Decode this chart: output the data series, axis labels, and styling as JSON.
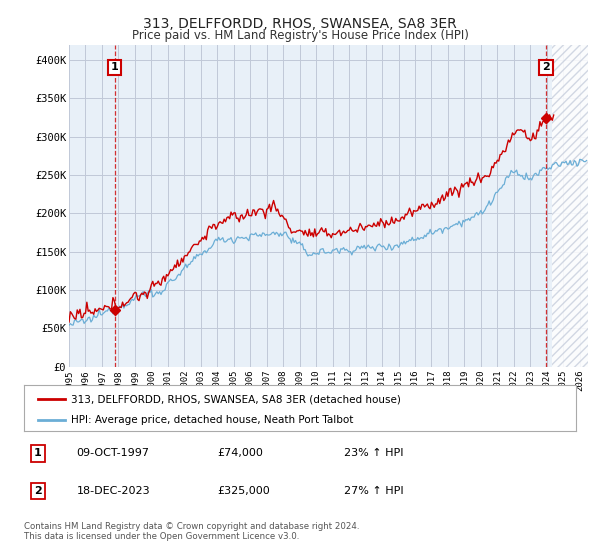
{
  "title": "313, DELFFORDD, RHOS, SWANSEA, SA8 3ER",
  "subtitle": "Price paid vs. HM Land Registry's House Price Index (HPI)",
  "legend_line1": "313, DELFFORDD, RHOS, SWANSEA, SA8 3ER (detached house)",
  "legend_line2": "HPI: Average price, detached house, Neath Port Talbot",
  "annotation1_date": "09-OCT-1997",
  "annotation1_price": "£74,000",
  "annotation1_hpi": "23% ↑ HPI",
  "annotation1_year": 1997.78,
  "annotation1_value": 74000,
  "annotation2_date": "18-DEC-2023",
  "annotation2_price": "£325,000",
  "annotation2_hpi": "27% ↑ HPI",
  "annotation2_year": 2023.96,
  "annotation2_value": 325000,
  "footer": "Contains HM Land Registry data © Crown copyright and database right 2024.\nThis data is licensed under the Open Government Licence v3.0.",
  "hpi_color": "#6baed6",
  "price_color": "#cc0000",
  "background_color": "#ffffff",
  "chart_bg_color": "#e8f0f8",
  "grid_color": "#c0c8d8",
  "ylim": [
    0,
    420000
  ],
  "yticks": [
    0,
    50000,
    100000,
    150000,
    200000,
    250000,
    300000,
    350000,
    400000
  ],
  "ytick_labels": [
    "£0",
    "£50K",
    "£100K",
    "£150K",
    "£200K",
    "£250K",
    "£300K",
    "£350K",
    "£400K"
  ],
  "xlim_start": 1995.0,
  "xlim_end": 2026.5
}
